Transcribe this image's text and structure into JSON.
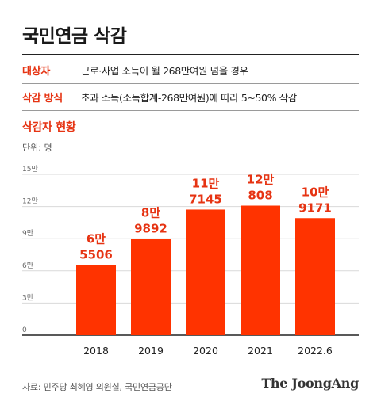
{
  "title": "국민연금 삭감",
  "info": [
    {
      "label": "대상자",
      "value": "근로·사업 소득이 월 268만여원 넘을 경우"
    },
    {
      "label": "삭감 방식",
      "value": "초과 소득(소득합계-268만여원)에 따라 5~50% 삭감"
    }
  ],
  "section_title": "삭감자 현황",
  "unit": "단위: 명",
  "source": "자료: 민주당 최혜영 의원실, 국민연금공단",
  "brand": "The JoongAng",
  "colors": {
    "accent": "#e63312",
    "bar": "#ff3300",
    "grid": "#d9d9d9",
    "axis": "#222222"
  },
  "chart_data": {
    "type": "bar",
    "categories": [
      "2018",
      "2019",
      "2020",
      "2021",
      "2022.6"
    ],
    "values": [
      65506,
      89892,
      117145,
      120808,
      109171
    ],
    "data_labels": [
      [
        "6만",
        "5506"
      ],
      [
        "8만",
        "9892"
      ],
      [
        "11만",
        "7145"
      ],
      [
        "12만",
        "808"
      ],
      [
        "10만",
        "9171"
      ]
    ],
    "yticks": [
      0,
      30000,
      60000,
      90000,
      120000,
      150000
    ],
    "ytick_labels": [
      "0",
      "3만",
      "6만",
      "9만",
      "12만",
      "15만"
    ],
    "ylim": [
      0,
      150000
    ],
    "grid": true
  }
}
